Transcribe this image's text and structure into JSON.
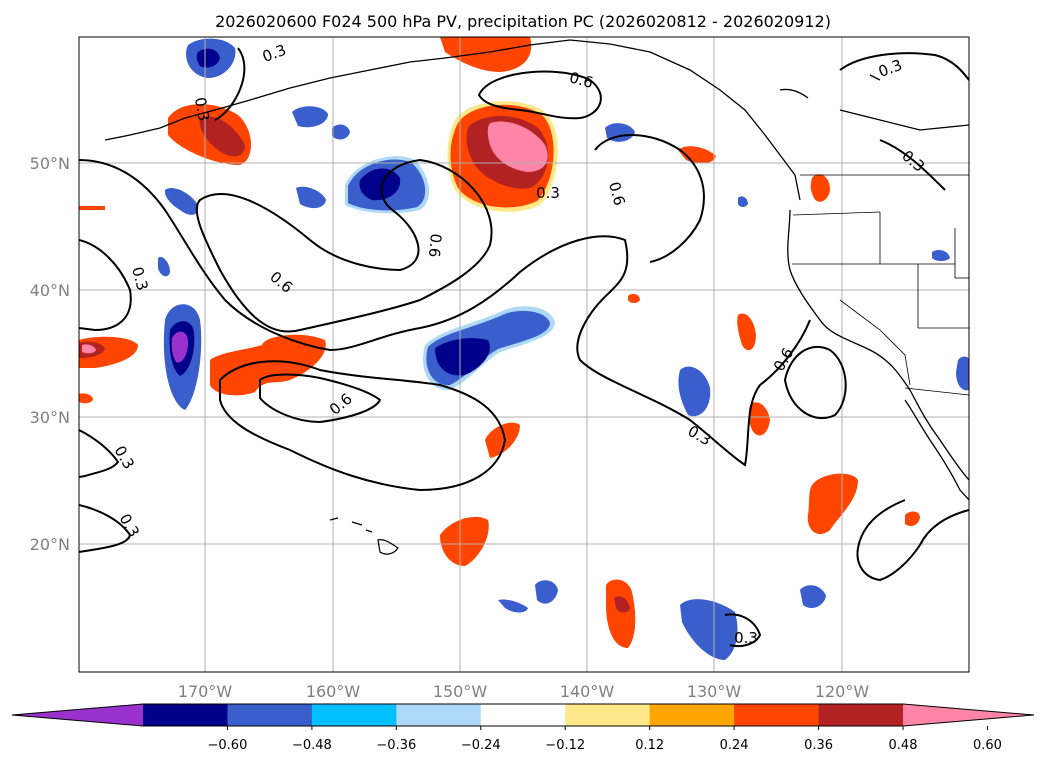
{
  "title": "2026020600 F024 500 hPa PV, precipitation PC (2026020812 - 2026020912)",
  "map": {
    "lat_labels": [
      "50°N",
      "40°N",
      "30°N",
      "20°N"
    ],
    "lon_labels": [
      "170°W",
      "160°W",
      "150°W",
      "140°W",
      "130°W",
      "120°W"
    ],
    "extent": {
      "lon": [
        -180,
        -110
      ],
      "lat": [
        10,
        60
      ]
    },
    "gridlines": true
  },
  "contours": {
    "field": "500 hPa PV",
    "levels": [
      0.3,
      0.6
    ],
    "labels": [
      {
        "text": "0.3"
      },
      {
        "text": "0.6"
      },
      {
        "text": "0.3"
      },
      {
        "text": "0.3"
      },
      {
        "text": "0.3"
      },
      {
        "text": "0.6"
      },
      {
        "text": "0.6"
      },
      {
        "text": "0.3"
      },
      {
        "text": "0.6"
      },
      {
        "text": "0.6"
      },
      {
        "text": "0.3"
      },
      {
        "text": "0.3"
      },
      {
        "text": "0.3"
      },
      {
        "text": "0.6"
      },
      {
        "text": "0.3"
      }
    ]
  },
  "colorbar": {
    "ticks": [
      "−0.60",
      "−0.48",
      "−0.36",
      "−0.24",
      "−0.12",
      "0.12",
      "0.24",
      "0.36",
      "0.48",
      "0.60"
    ],
    "colors": [
      "#9932CC",
      "#00008B",
      "#3A5FCD",
      "#00BFFF",
      "#ADD8F6",
      "#FFFFFF",
      "#FFE88A",
      "#FFA500",
      "#FF4500",
      "#B22222",
      "#FF85A8"
    ]
  },
  "colors": {
    "coast": "#000000",
    "grid": "#b0b0b0",
    "contour": "#000000"
  }
}
